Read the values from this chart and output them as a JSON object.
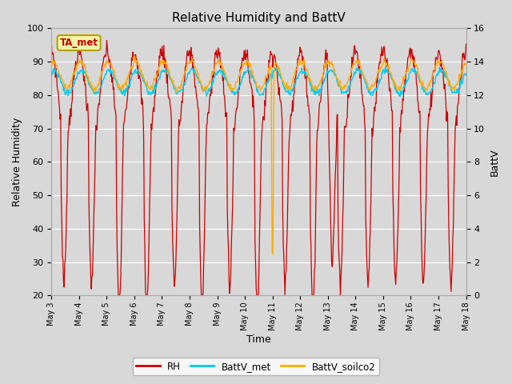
{
  "title": "Relative Humidity and BattV",
  "xlabel": "Time",
  "ylabel_left": "Relative Humidity",
  "ylabel_right": "BattV",
  "ylim_left": [
    20,
    100
  ],
  "ylim_right": [
    0,
    16
  ],
  "bg_color": "#d8d8d8",
  "annotation_text": "TA_met",
  "annotation_bg": "#f5f5aa",
  "annotation_border": "#b8a000",
  "rh_color": "#cc0000",
  "battv_met_color": "#00ccee",
  "battv_soilco2_color": "#ffaa00",
  "x_tick_labels": [
    "May 3",
    "May 4",
    "May 5",
    "May 6",
    "May 7",
    "May 8",
    "May 9",
    "May 10",
    "May 11",
    "May 12",
    "May 13",
    "May 14",
    "May 15",
    "May 16",
    "May 17",
    "May 18"
  ],
  "legend_labels": [
    "RH",
    "BattV_met",
    "BattV_soilco2"
  ],
  "yticks_left": [
    20,
    30,
    40,
    50,
    60,
    70,
    80,
    90,
    100
  ],
  "yticks_right": [
    0,
    2,
    4,
    6,
    8,
    10,
    12,
    14,
    16
  ]
}
